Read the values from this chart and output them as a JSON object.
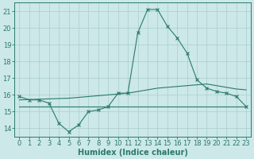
{
  "x": [
    0,
    1,
    2,
    3,
    4,
    5,
    6,
    7,
    8,
    9,
    10,
    11,
    12,
    13,
    14,
    15,
    16,
    17,
    18,
    19,
    20,
    21,
    22,
    23
  ],
  "y_main": [
    15.9,
    15.7,
    15.7,
    15.5,
    14.3,
    13.8,
    14.2,
    15.0,
    15.1,
    15.3,
    16.1,
    16.1,
    19.7,
    21.1,
    21.1,
    20.1,
    19.4,
    18.5,
    16.9,
    16.4,
    16.2,
    16.1,
    15.9,
    15.3
  ],
  "y_avg": [
    15.3,
    15.3,
    15.3,
    15.3,
    15.3,
    15.3,
    15.3,
    15.3,
    15.3,
    15.3,
    15.3,
    15.3,
    15.3,
    15.3,
    15.3,
    15.3,
    15.3,
    15.3,
    15.3,
    15.3,
    15.3,
    15.3,
    15.3,
    15.3
  ],
  "y_trend": [
    15.7,
    15.72,
    15.74,
    15.76,
    15.78,
    15.8,
    15.85,
    15.9,
    15.95,
    16.0,
    16.05,
    16.1,
    16.2,
    16.3,
    16.4,
    16.45,
    16.5,
    16.55,
    16.6,
    16.65,
    16.55,
    16.45,
    16.35,
    16.3
  ],
  "line_color": "#2a7a6a",
  "bg_color": "#cce8e8",
  "grid_color": "#aacece",
  "xlabel": "Humidex (Indice chaleur)",
  "ylim": [
    13.5,
    21.5
  ],
  "xlim": [
    -0.5,
    23.5
  ],
  "yticks": [
    14,
    15,
    16,
    17,
    18,
    19,
    20,
    21
  ],
  "xticks": [
    0,
    1,
    2,
    3,
    4,
    5,
    6,
    7,
    8,
    9,
    10,
    11,
    12,
    13,
    14,
    15,
    16,
    17,
    18,
    19,
    20,
    21,
    22,
    23
  ],
  "font_size": 6.0,
  "xlabel_fontsize": 7.0
}
